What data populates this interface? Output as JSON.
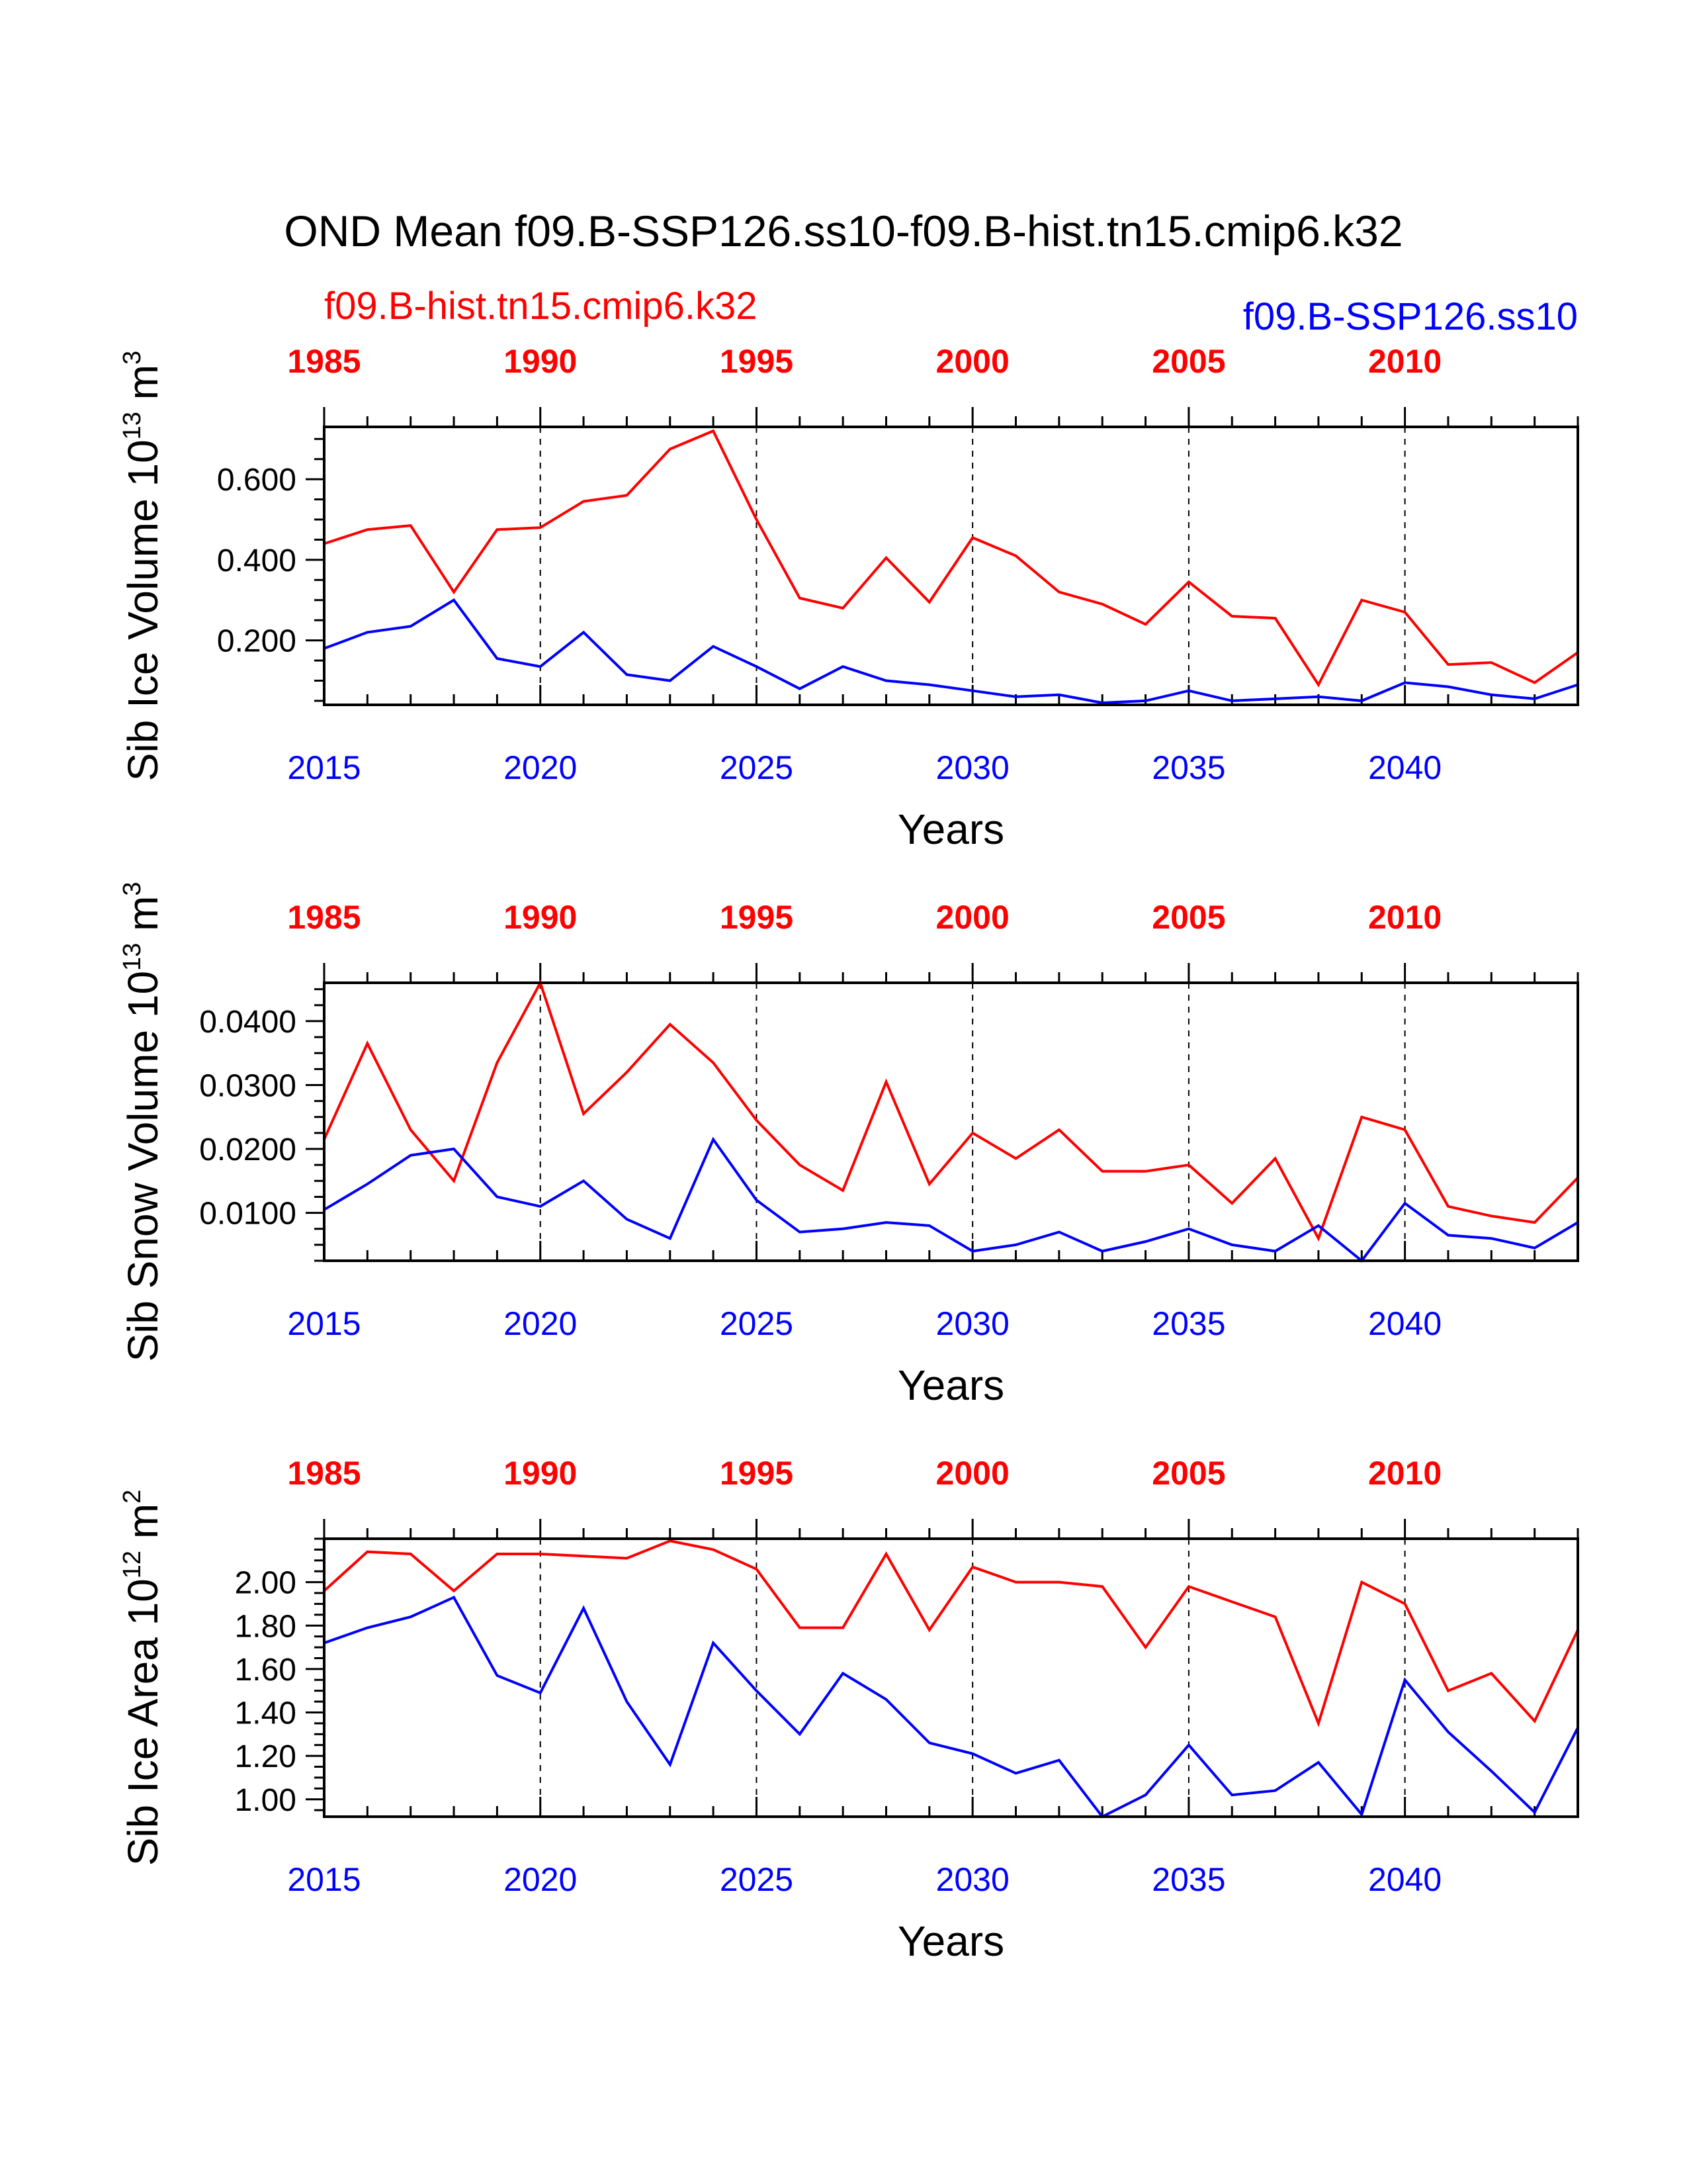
{
  "title": "OND Mean f09.B-SSP126.ss10-f09.B-hist.tn15.cmip6.k32",
  "legend": {
    "hist": "f09.B-hist.tn15.cmip6.k32",
    "ssp": "f09.B-SSP126.ss10"
  },
  "colors": {
    "hist": "#ff0000",
    "ssp": "#0000ff",
    "axis": "#000000"
  },
  "chart_data": [
    {
      "type": "line",
      "ylabel": "Sib Ice Volume 10",
      "ylabel_exp": "13",
      "ylabel_unit": " m",
      "ylabel_unit_exp": "3",
      "xlabel": "Years",
      "ylim": [
        0.04,
        0.73
      ],
      "yticks": [
        0.2,
        0.4,
        0.6
      ],
      "ytick_labels": [
        "0.200",
        "0.400",
        "0.600"
      ],
      "bottom_axis": {
        "range": [
          2015,
          2044
        ],
        "ticks": [
          2015,
          2020,
          2025,
          2030,
          2035,
          2040
        ],
        "labels": [
          "2015",
          "2020",
          "2025",
          "2030",
          "2035",
          "2040"
        ]
      },
      "top_axis": {
        "range": [
          1985,
          2014
        ],
        "ticks": [
          1985,
          1990,
          1995,
          2000,
          2005,
          2010
        ],
        "labels": [
          "1985",
          "1990",
          "1995",
          "2000",
          "2005",
          "2010"
        ]
      },
      "series": [
        {
          "name": "f09.B-hist.tn15.cmip6.k32",
          "color": "#ff0000",
          "values": [
            0.44,
            0.475,
            0.485,
            0.32,
            0.475,
            0.48,
            0.545,
            0.56,
            0.675,
            0.72,
            0.5,
            0.305,
            0.28,
            0.405,
            0.295,
            0.455,
            0.41,
            0.32,
            0.29,
            0.24,
            0.345,
            0.26,
            0.255,
            0.09,
            0.3,
            0.27,
            0.14,
            0.145,
            0.095,
            0.17
          ]
        },
        {
          "name": "f09.B-SSP126.ss10",
          "color": "#0000ff",
          "values": [
            0.18,
            0.22,
            0.235,
            0.3,
            0.155,
            0.135,
            0.22,
            0.115,
            0.1,
            0.185,
            0.135,
            0.08,
            0.135,
            0.1,
            0.09,
            0.075,
            0.06,
            0.065,
            0.045,
            0.05,
            0.075,
            0.05,
            0.055,
            0.06,
            0.05,
            0.095,
            0.085,
            0.065,
            0.055,
            0.09
          ]
        }
      ]
    },
    {
      "type": "line",
      "ylabel": "Sib Snow Volume 10",
      "ylabel_exp": "13",
      "ylabel_unit": " m",
      "ylabel_unit_exp": "3",
      "xlabel": "Years",
      "ylim": [
        0.0025,
        0.046
      ],
      "yticks": [
        0.01,
        0.02,
        0.03,
        0.04
      ],
      "ytick_labels": [
        "0.0100",
        "0.0200",
        "0.0300",
        "0.0400"
      ],
      "bottom_axis": {
        "range": [
          2015,
          2044
        ],
        "ticks": [
          2015,
          2020,
          2025,
          2030,
          2035,
          2040
        ],
        "labels": [
          "2015",
          "2020",
          "2025",
          "2030",
          "2035",
          "2040"
        ]
      },
      "top_axis": {
        "range": [
          1985,
          2014
        ],
        "ticks": [
          1985,
          1990,
          1995,
          2000,
          2005,
          2010
        ],
        "labels": [
          "1985",
          "1990",
          "1995",
          "2000",
          "2005",
          "2010"
        ]
      },
      "series": [
        {
          "name": "f09.B-hist.tn15.cmip6.k32",
          "color": "#ff0000",
          "values": [
            0.0215,
            0.0365,
            0.023,
            0.015,
            0.0335,
            0.046,
            0.0255,
            0.032,
            0.0395,
            0.0335,
            0.0245,
            0.0175,
            0.0135,
            0.0305,
            0.0145,
            0.0225,
            0.0185,
            0.023,
            0.0165,
            0.0165,
            0.0175,
            0.0115,
            0.0185,
            0.006,
            0.025,
            0.023,
            0.011,
            0.0095,
            0.0085,
            0.0155
          ]
        },
        {
          "name": "f09.B-SSP126.ss10",
          "color": "#0000ff",
          "values": [
            0.0105,
            0.0145,
            0.019,
            0.02,
            0.0125,
            0.011,
            0.015,
            0.009,
            0.006,
            0.0215,
            0.012,
            0.007,
            0.0075,
            0.0085,
            0.008,
            0.004,
            0.005,
            0.007,
            0.004,
            0.0055,
            0.0075,
            0.005,
            0.004,
            0.008,
            0.0025,
            0.0115,
            0.0065,
            0.006,
            0.0045,
            0.0085
          ]
        }
      ]
    },
    {
      "type": "line",
      "ylabel": "Sib Ice Area 10",
      "ylabel_exp": "12",
      "ylabel_unit": " m",
      "ylabel_unit_exp": "2",
      "xlabel": "Years",
      "ylim": [
        0.92,
        2.2
      ],
      "yticks": [
        1.0,
        1.2,
        1.4,
        1.6,
        1.8,
        2.0
      ],
      "ytick_labels": [
        "1.00",
        "1.20",
        "1.40",
        "1.60",
        "1.80",
        "2.00"
      ],
      "bottom_axis": {
        "range": [
          2015,
          2044
        ],
        "ticks": [
          2015,
          2020,
          2025,
          2030,
          2035,
          2040
        ],
        "labels": [
          "2015",
          "2020",
          "2025",
          "2030",
          "2035",
          "2040"
        ]
      },
      "top_axis": {
        "range": [
          1985,
          2014
        ],
        "ticks": [
          1985,
          1990,
          1995,
          2000,
          2005,
          2010
        ],
        "labels": [
          "1985",
          "1990",
          "1995",
          "2000",
          "2005",
          "2010"
        ]
      },
      "series": [
        {
          "name": "f09.B-hist.tn15.cmip6.k32",
          "color": "#ff0000",
          "values": [
            1.96,
            2.14,
            2.13,
            1.96,
            2.13,
            2.13,
            2.12,
            2.11,
            2.19,
            2.15,
            2.06,
            1.79,
            1.79,
            2.13,
            1.78,
            2.07,
            2.0,
            2.0,
            1.98,
            1.7,
            1.98,
            1.91,
            1.84,
            1.35,
            2.0,
            1.9,
            1.5,
            1.58,
            1.36,
            1.78
          ]
        },
        {
          "name": "f09.B-SSP126.ss10",
          "color": "#0000ff",
          "values": [
            1.72,
            1.79,
            1.84,
            1.93,
            1.57,
            1.49,
            1.88,
            1.45,
            1.16,
            1.72,
            1.5,
            1.3,
            1.58,
            1.46,
            1.26,
            1.21,
            1.12,
            1.18,
            0.92,
            1.02,
            1.25,
            1.02,
            1.04,
            1.17,
            0.93,
            1.55,
            1.31,
            1.13,
            0.94,
            1.33
          ]
        }
      ]
    }
  ]
}
